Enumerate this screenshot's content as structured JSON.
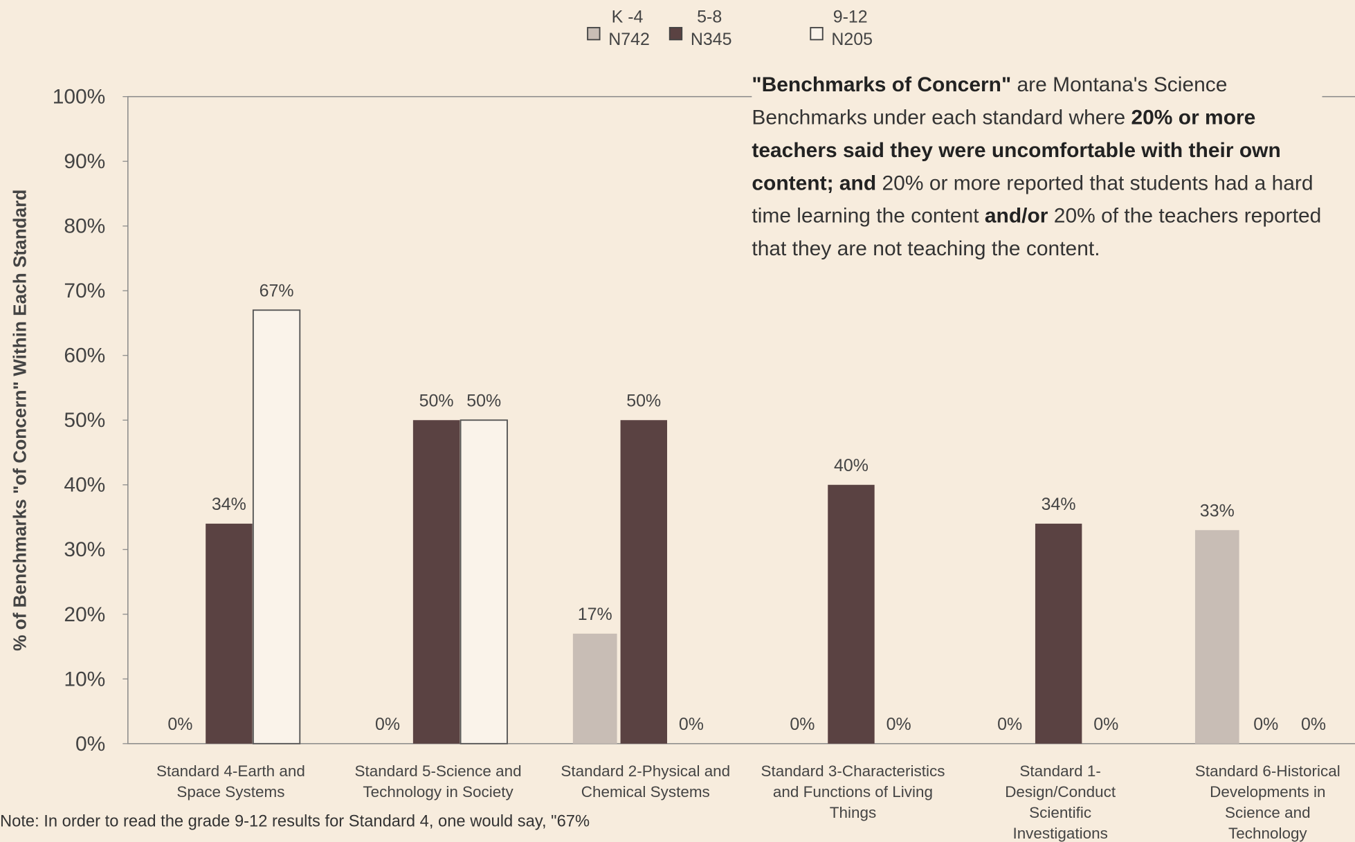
{
  "chart_data": {
    "type": "bar",
    "y_label": "% of Benchmarks \"of Concern\" Within Each Standard",
    "categories": [
      [
        "Standard 4-Earth and",
        "Space Systems"
      ],
      [
        "Standard 5-Science and",
        "Technology in Society"
      ],
      [
        "Standard 2-Physical and",
        "Chemical Systems"
      ],
      [
        "Standard 3-Characteristics",
        "and Functions of Living",
        "Things"
      ],
      [
        "Standard 1-",
        "Design/Conduct",
        "Scientific",
        "Investigations"
      ],
      [
        "Standard 6-Historical",
        "Developments in",
        "Science and",
        "Technology"
      ]
    ],
    "series": [
      {
        "name": "K -4",
        "sample": "N742",
        "color": "#c8bdb5",
        "values": [
          0,
          0,
          17,
          0,
          0,
          33
        ],
        "value_labels": [
          "0%",
          "0%",
          "17%",
          "0%",
          "0%",
          "33%"
        ]
      },
      {
        "name": "5-8",
        "sample": "N345",
        "color": "#5a4242",
        "values": [
          34,
          50,
          50,
          40,
          34,
          0
        ],
        "value_labels": [
          "34%",
          "50%",
          "50%",
          "40%",
          "34%",
          "0%"
        ]
      },
      {
        "name": "9-12",
        "sample": "N205",
        "color": "#faf3ea",
        "values": [
          67,
          50,
          0,
          0,
          0,
          0
        ],
        "value_labels": [
          "67%",
          "50%",
          "0%",
          "0%",
          "0%",
          "0%"
        ]
      }
    ],
    "ylim": [
      0,
      100
    ],
    "yticks": [
      {
        "value": 0,
        "label": "0%"
      },
      {
        "value": 10,
        "label": "10%"
      },
      {
        "value": 20,
        "label": "20%"
      },
      {
        "value": 30,
        "label": "30%"
      },
      {
        "value": 40,
        "label": "40%"
      },
      {
        "value": 50,
        "label": "50%"
      },
      {
        "value": 60,
        "label": "60%"
      },
      {
        "value": 70,
        "label": "70%"
      },
      {
        "value": 80,
        "label": "80%"
      },
      {
        "value": 90,
        "label": "90%"
      },
      {
        "value": 100,
        "label": "100%"
      }
    ],
    "annotation": [
      {
        "text": "\"Benchmarks of Concern\"",
        "bold": true
      },
      {
        "text": " are Montana's Science Benchmarks under each standard where ",
        "bold": false
      },
      {
        "text": "20% or more teachers said they were uncomfortable with their own content; and",
        "bold": true
      },
      {
        "text": " 20% or more reported that students had a hard time learning the content ",
        "bold": false
      },
      {
        "text": "and/or",
        "bold": true
      },
      {
        "text": " 20% of the teachers reported that they are not teaching the content.",
        "bold": false
      }
    ],
    "note": "Note: In order to read the grade 9-12 results for Standard 4, one would say, \"67%"
  }
}
